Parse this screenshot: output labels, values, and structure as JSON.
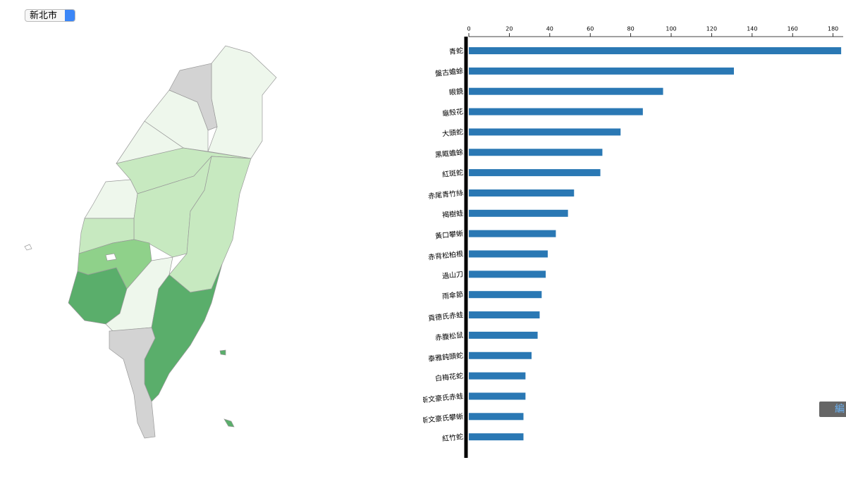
{
  "selector": {
    "selected": "新北市"
  },
  "edit_button": "編",
  "chart_data": {
    "type": "bar",
    "orientation": "horizontal",
    "categories": [
      "青蛇",
      "盤古蟾蜍",
      "眼鏡",
      "龜殼花",
      "大頭蛇",
      "黑眶蟾蜍",
      "紅斑蛇",
      "赤尾青竹絲",
      "褐樹蛙",
      "黃口攀蜥",
      "赤背松柏根",
      "過山刀",
      "雨傘節",
      "貢德氏赤蛙",
      "赤腹松鼠",
      "泰雅鈍頭蛇",
      "白梅花蛇",
      "斯文豪氏赤蛙",
      "斯文豪氏攀蜥",
      "紅竹蛇"
    ],
    "values": [
      184,
      131,
      96,
      86,
      75,
      66,
      65,
      52,
      49,
      43,
      39,
      38,
      36,
      35,
      34,
      31,
      28,
      28,
      27,
      27
    ],
    "color": "#2a78b4",
    "xlim": [
      0,
      185
    ],
    "xticks": [
      0,
      20,
      40,
      60,
      80,
      100,
      120,
      140,
      160,
      180
    ]
  }
}
